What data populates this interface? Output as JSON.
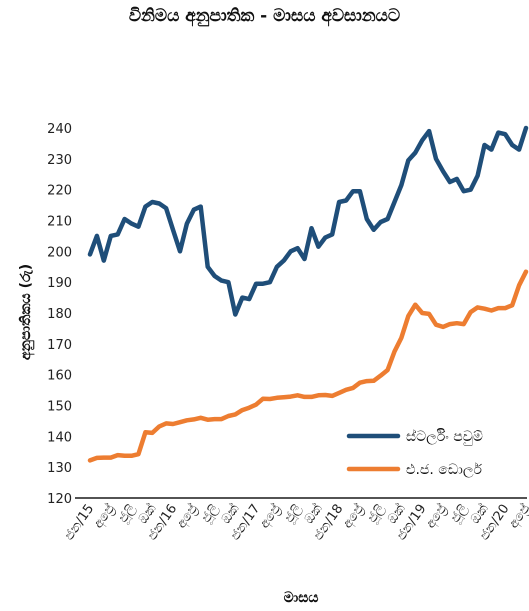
{
  "chart_data": {
    "type": "line",
    "title": "විනිමය අනුපාතික - මාසය අවසානයට",
    "xlabel": "මාසය",
    "ylabel": "අනුපාතිකය (රු)",
    "ylim": [
      120,
      240
    ],
    "yticks": [
      120,
      130,
      140,
      150,
      160,
      170,
      180,
      190,
      200,
      210,
      220,
      230,
      240
    ],
    "grid": false,
    "legend_position": "right",
    "xtick_labels": [
      "ජන/15",
      "අප්‍රේ",
      "ජූලි",
      "ඔක්",
      "ජන/16",
      "අප්‍රේ",
      "ජූලි",
      "ඔක්",
      "ජන/17",
      "අප්‍රේ",
      "ජූලි",
      "ඔක්",
      "ජන/18",
      "අප්‍රේ",
      "ජූලි",
      "ඔක්",
      "ජන/19",
      "අප්‍රේ",
      "ජූලි",
      "ඔක්",
      "ජන/20",
      "අප්‍රේ"
    ],
    "series": [
      {
        "name": "ස්ටර්ලිං පවුම්",
        "color": "#1f4e79",
        "values": [
          199,
          205,
          197,
          205,
          205.5,
          210.5,
          209,
          208,
          214.5,
          216,
          215.5,
          214,
          207,
          200,
          209,
          213.5,
          214.5,
          195,
          192,
          190.5,
          190,
          179.5,
          185,
          184.5,
          189.5,
          189.5,
          190,
          195,
          197,
          200,
          201,
          197.5,
          207.5,
          201.5,
          204.5,
          205.5,
          216,
          216.5,
          219.5,
          219.5,
          210.5,
          207,
          209.5,
          210.5,
          216,
          221.5,
          229.5,
          232,
          236,
          239,
          230,
          226,
          222.5,
          223.5,
          219.5,
          220,
          224.5,
          234.5,
          233,
          238.5,
          238,
          234.5,
          233,
          240
        ]
      },
      {
        "name": "එ.ජ. ඩොලර්",
        "color": "#ed7d31",
        "values": [
          132.2,
          133,
          133.1,
          133.1,
          133.9,
          133.7,
          133.7,
          134.2,
          141.3,
          141.1,
          143.2,
          144.2,
          144,
          144.6,
          145.2,
          145.5,
          146,
          145.4,
          145.6,
          145.6,
          146.6,
          147.1,
          148.5,
          149.3,
          150.3,
          152.2,
          152.1,
          152.5,
          152.7,
          152.9,
          153.3,
          152.8,
          152.8,
          153.3,
          153.4,
          153.1,
          154.1,
          155.1,
          155.7,
          157.4,
          157.9,
          158,
          159.7,
          161.5,
          167.5,
          172,
          179,
          182.7,
          180,
          179.7,
          176.2,
          175.5,
          176.4,
          176.7,
          176.4,
          180.3,
          181.8,
          181.4,
          180.8,
          181.6,
          181.6,
          182.5,
          189,
          193.4
        ]
      }
    ]
  }
}
